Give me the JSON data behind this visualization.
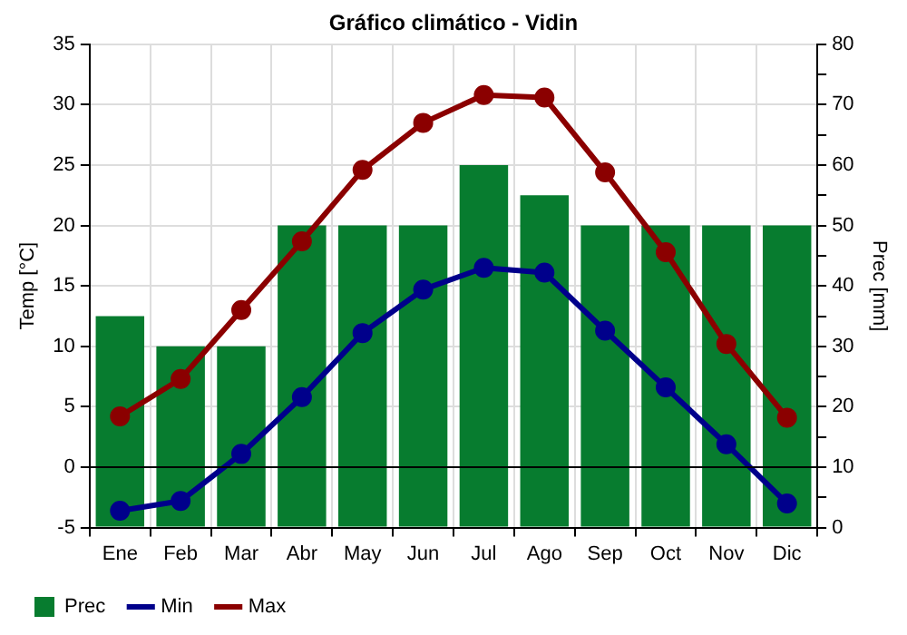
{
  "chart_data": {
    "type": "line",
    "title": "Gráfico climático - Vidin",
    "ylabel": "Temp [°C]",
    "y2label": "Prec [mm]",
    "categories": [
      "Ene",
      "Feb",
      "Mar",
      "Abr",
      "May",
      "Jun",
      "Jul",
      "Ago",
      "Sep",
      "Oct",
      "Nov",
      "Dic"
    ],
    "series": [
      {
        "name": "Prec",
        "type": "bar",
        "axis": "y2",
        "color": "#077c2f",
        "values": [
          35,
          30,
          30,
          50,
          50,
          50,
          60,
          55,
          50,
          50,
          50,
          50
        ]
      },
      {
        "name": "Min",
        "color": "#00008b",
        "values": [
          -3.6,
          -2.8,
          1.1,
          5.8,
          11.1,
          14.7,
          16.5,
          16.1,
          11.3,
          6.6,
          1.9,
          -3.0
        ]
      },
      {
        "name": "Max",
        "color": "#8b0000",
        "values": [
          4.2,
          7.3,
          13.0,
          18.7,
          24.6,
          28.5,
          30.8,
          30.6,
          24.4,
          17.8,
          10.2,
          4.1
        ]
      }
    ],
    "ylim": [
      -5,
      35
    ],
    "yticks": [
      -5,
      0,
      5,
      10,
      15,
      20,
      25,
      30,
      35
    ],
    "y2lim": [
      0,
      80
    ],
    "y2ticks": [
      0,
      {
        "value": 5,
        "label": null
      },
      10,
      {
        "value": 15,
        "label": null
      },
      20,
      {
        "value": 25,
        "label": null
      },
      30,
      {
        "value": 35,
        "label": null
      },
      40,
      {
        "value": 45,
        "label": null
      },
      50,
      {
        "value": 55,
        "label": null
      },
      60,
      {
        "value": 65,
        "label": null
      },
      70,
      {
        "value": 75,
        "label": null
      },
      80
    ],
    "ref_lines": [
      {
        "axis": "y",
        "value": 0,
        "color": "#000000"
      }
    ],
    "grid": true,
    "legend": "bottom left",
    "marker": "circle",
    "line_style": "solid"
  }
}
